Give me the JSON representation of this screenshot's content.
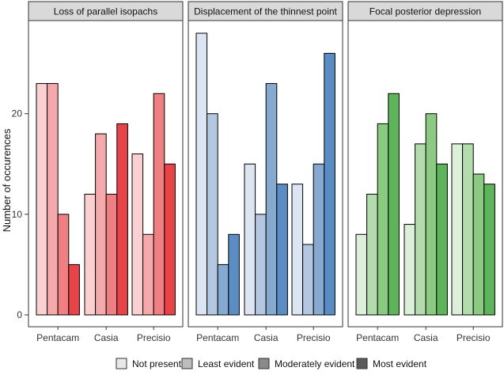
{
  "chart_data": {
    "type": "bar",
    "ylabel": "Number of occurences",
    "ylim": [
      0,
      28
    ],
    "yticks": [
      0,
      10,
      20
    ],
    "categories": [
      "Pentacam",
      "Casia",
      "Precisio"
    ],
    "legend": {
      "position": "bottom",
      "entries": [
        "Not present",
        "Least evident",
        "Moderately evident",
        "Most evident"
      ],
      "colors": [
        "#e8e8e8",
        "#bdbdbd",
        "#8a8a8a",
        "#5a5a5a"
      ]
    },
    "panels": [
      {
        "title": "Loss of parallel isopachs",
        "colors": [
          "#fbd0d0",
          "#f6a9ab",
          "#ef7f81",
          "#e84447"
        ],
        "values": [
          [
            23,
            23,
            10,
            5
          ],
          [
            12,
            18,
            12,
            19
          ],
          [
            16,
            8,
            22,
            15
          ]
        ]
      },
      {
        "title": "Displacement of the thinnest point",
        "colors": [
          "#dce6f2",
          "#b3c8e0",
          "#85a9cf",
          "#5a8dc3"
        ],
        "values": [
          [
            28,
            20,
            5,
            8
          ],
          [
            15,
            10,
            23,
            13
          ],
          [
            13,
            7,
            15,
            26
          ]
        ]
      },
      {
        "title": "Focal posterior depression",
        "colors": [
          "#dcefd8",
          "#b2dcab",
          "#8acb81",
          "#5db55a"
        ],
        "values": [
          [
            8,
            12,
            19,
            22
          ],
          [
            9,
            17,
            20,
            15
          ],
          [
            17,
            17,
            14,
            13
          ]
        ]
      }
    ]
  }
}
